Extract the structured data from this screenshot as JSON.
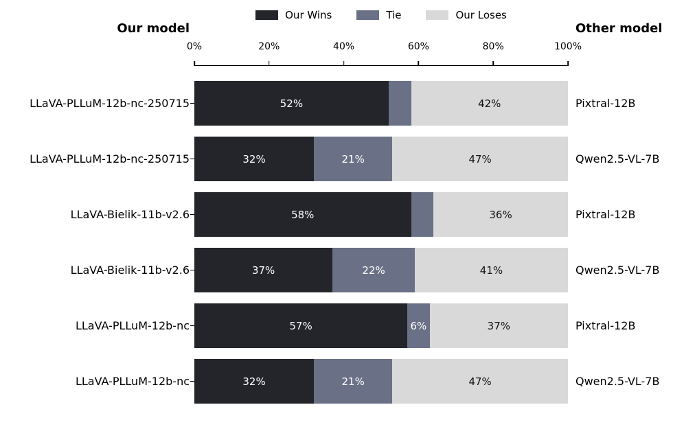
{
  "headers": {
    "left": "Our model",
    "right": "Other model"
  },
  "legend": [
    {
      "name": "wins",
      "label": "Our Wins",
      "color": "#23252a"
    },
    {
      "name": "tie",
      "label": "Tie",
      "color": "#6a7085"
    },
    {
      "name": "loses",
      "label": "Our Loses",
      "color": "#d9d9d9"
    }
  ],
  "chart_data": {
    "type": "bar",
    "orientation": "horizontal",
    "stacked": true,
    "title": "",
    "xlim": [
      0,
      100
    ],
    "x_tick_values": [
      0,
      20,
      40,
      60,
      80,
      100
    ],
    "x_tick_labels": [
      "0%",
      "20%",
      "40%",
      "60%",
      "80%",
      "100%"
    ],
    "grid": false,
    "legend_position": "top center",
    "left_axis_title": "Our model",
    "right_axis_title": "Other model",
    "series_names": [
      "Our Wins",
      "Tie",
      "Our Loses"
    ],
    "series_colors": [
      "#23252a",
      "#6a7085",
      "#d9d9d9"
    ],
    "segment_label_colors": [
      "#ffffff",
      "#ffffff",
      "#111111"
    ],
    "rows": [
      {
        "our_model": "LLaVA-PLLuM-12b-nc-250715",
        "other_model": "Pixtral-12B",
        "values": [
          52,
          6,
          42
        ],
        "labels": [
          "52%",
          "",
          "42%"
        ]
      },
      {
        "our_model": "LLaVA-PLLuM-12b-nc-250715",
        "other_model": "Qwen2.5-VL-7B",
        "values": [
          32,
          21,
          47
        ],
        "labels": [
          "32%",
          "21%",
          "47%"
        ]
      },
      {
        "our_model": "LLaVA-Bielik-11b-v2.6",
        "other_model": "Pixtral-12B",
        "values": [
          58,
          6,
          36
        ],
        "labels": [
          "58%",
          "",
          "36%"
        ]
      },
      {
        "our_model": "LLaVA-Bielik-11b-v2.6",
        "other_model": "Qwen2.5-VL-7B",
        "values": [
          37,
          22,
          41
        ],
        "labels": [
          "37%",
          "22%",
          "41%"
        ]
      },
      {
        "our_model": "LLaVA-PLLuM-12b-nc",
        "other_model": "Pixtral-12B",
        "values": [
          57,
          6,
          37
        ],
        "labels": [
          "57%",
          "6%",
          "37%"
        ]
      },
      {
        "our_model": "LLaVA-PLLuM-12b-nc",
        "other_model": "Qwen2.5-VL-7B",
        "values": [
          32,
          21,
          47
        ],
        "labels": [
          "32%",
          "21%",
          "47%"
        ]
      }
    ]
  }
}
